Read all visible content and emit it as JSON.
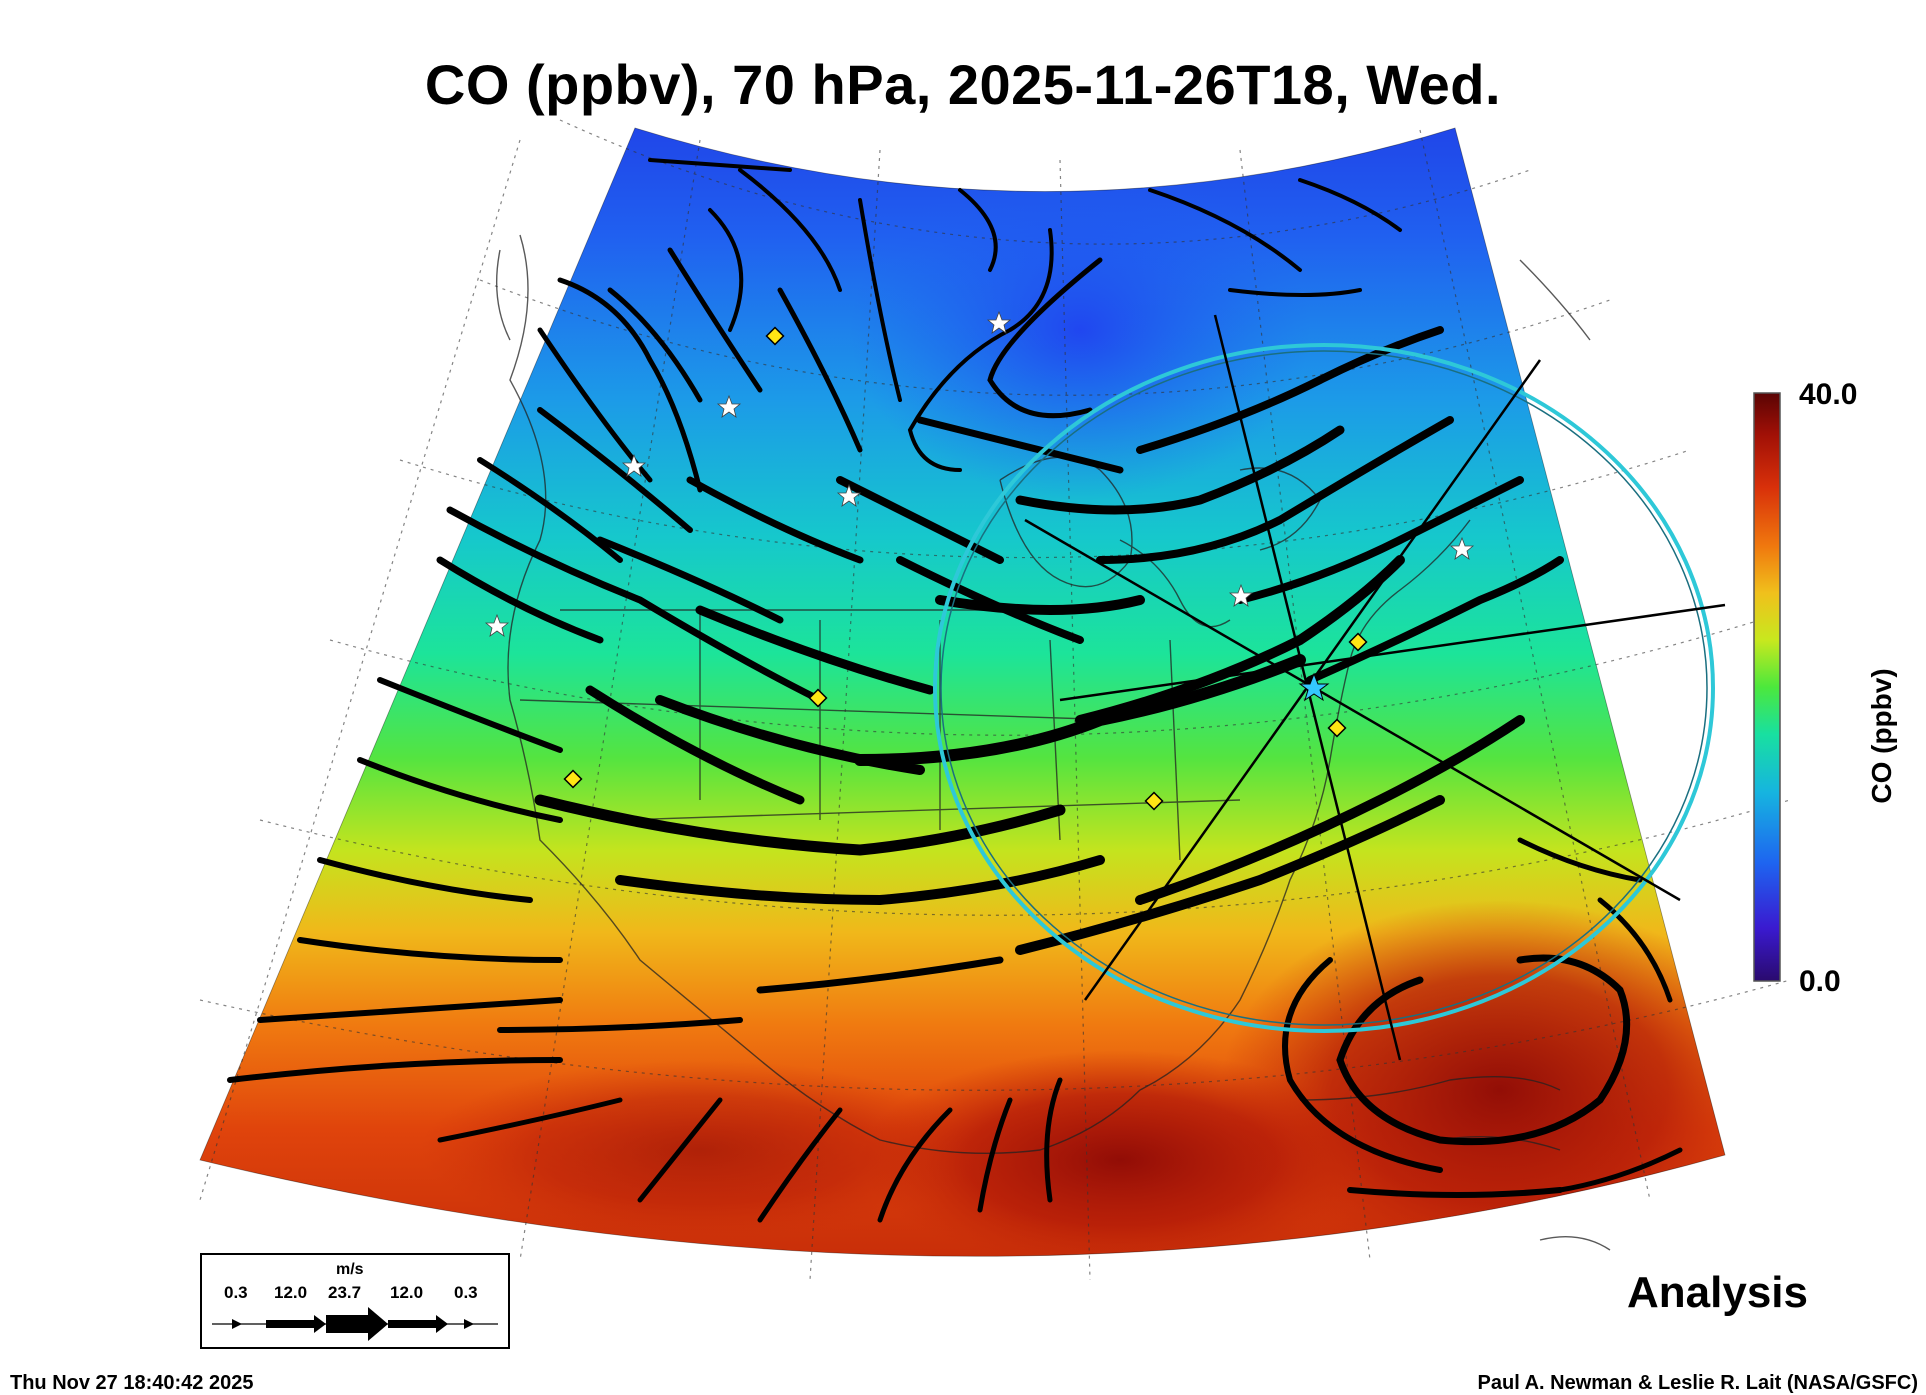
{
  "title": "CO (ppbv), 70 hPa, 2025-11-26T18, Wed.",
  "colorbar": {
    "max_label": "40.0",
    "min_label": "0.0",
    "label": "CO (ppbv)",
    "colors": [
      "#2a0a6e",
      "#3a1ad0",
      "#1e64f0",
      "#16b4e0",
      "#18e0a0",
      "#4ce83c",
      "#c8e81e",
      "#f0c01c",
      "#f0780e",
      "#d8300a",
      "#a01006",
      "#5a0404"
    ]
  },
  "wind_legend": {
    "unit": "m/s",
    "values": [
      "0.3",
      "12.0",
      "23.7",
      "12.0",
      "0.3"
    ]
  },
  "analysis_label": "Analysis",
  "timestamp": "Thu Nov 27 18:40:42 2025",
  "credit": "Paul A. Newman & Leslie R. Lait (NASA/GSFC)",
  "markers": {
    "diamond_color": "#ffe614",
    "star_color": "#ffffff",
    "range_ring_color": "#2ec8d8",
    "center_star_color": "#34c8ff"
  }
}
